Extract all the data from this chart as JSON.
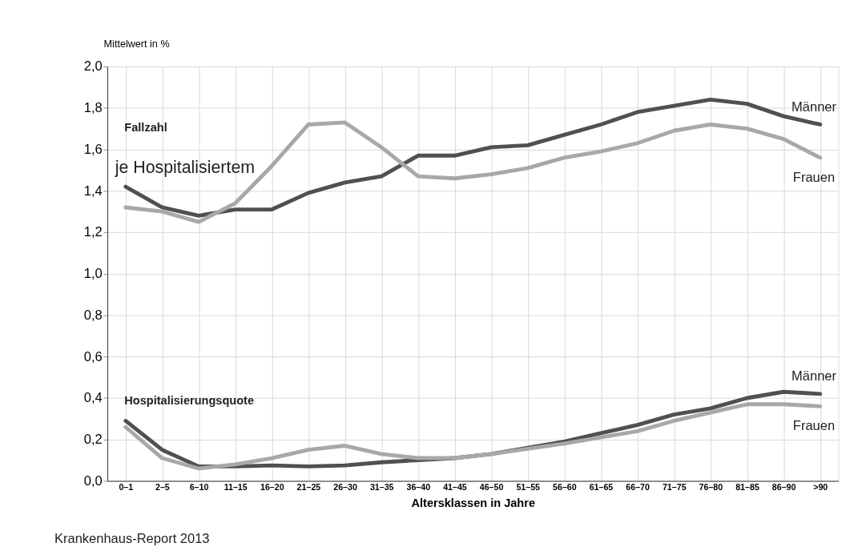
{
  "chart_data": {
    "type": "line",
    "ylabel": "Mittelwert in %",
    "xlabel": "Altersklassen in Jahre",
    "categories": [
      "0–1",
      "2–5",
      "6–10",
      "11–15",
      "16–20",
      "21–25",
      "26–30",
      "31–35",
      "36–40",
      "41–45",
      "46–50",
      "51–55",
      "56–60",
      "61–65",
      "66–70",
      "71–75",
      "76–80",
      "81–85",
      "86–90",
      ">90"
    ],
    "series": [
      {
        "name": "Männer",
        "color": "#505050",
        "values": [
          1.42,
          1.32,
          1.28,
          1.31,
          1.31,
          1.39,
          1.44,
          1.47,
          1.57,
          1.57,
          1.61,
          1.62,
          1.67,
          1.72,
          1.78,
          1.81,
          1.84,
          1.82,
          1.76,
          1.72
        ]
      },
      {
        "name": "Frauen",
        "color": "#a8a8aa",
        "values": [
          1.32,
          1.3,
          1.25,
          1.34,
          1.52,
          1.72,
          1.73,
          1.61,
          1.47,
          1.46,
          1.48,
          1.51,
          1.56,
          1.59,
          1.63,
          1.69,
          1.72,
          1.7,
          1.65,
          1.56
        ]
      },
      {
        "name": "Männer",
        "color": "#505050",
        "values": [
          0.29,
          0.15,
          0.07,
          0.07,
          0.075,
          0.07,
          0.075,
          0.09,
          0.1,
          0.11,
          0.13,
          0.16,
          0.19,
          0.23,
          0.27,
          0.32,
          0.35,
          0.4,
          0.43,
          0.42
        ]
      },
      {
        "name": "Frauen",
        "color": "#a8a8aa",
        "values": [
          0.26,
          0.11,
          0.06,
          0.08,
          0.11,
          0.15,
          0.17,
          0.13,
          0.11,
          0.11,
          0.13,
          0.155,
          0.18,
          0.21,
          0.24,
          0.29,
          0.33,
          0.37,
          0.37,
          0.36
        ]
      }
    ],
    "ylim": [
      0,
      2
    ],
    "yticks": [
      {
        "value": 0,
        "label": "0,0"
      },
      {
        "value": 0.2,
        "label": "0,2"
      },
      {
        "value": 0.4,
        "label": "0,4"
      },
      {
        "value": 0.6,
        "label": "0,6"
      },
      {
        "value": 0.8,
        "label": "0,8"
      },
      {
        "value": 1.0,
        "label": "1,0"
      },
      {
        "value": 1.2,
        "label": "1,2"
      },
      {
        "value": 1.4,
        "label": "1,4"
      },
      {
        "value": 1.6,
        "label": "1,6"
      },
      {
        "value": 1.8,
        "label": "1,8"
      },
      {
        "value": 2.0,
        "label": "2,0"
      }
    ],
    "grid": true,
    "marker": "none",
    "line_style": "solid",
    "annotations": [
      "Fallzahl",
      "je Hospitalisiertem",
      "Hospitalisierungsquote",
      "Krankenhaus-Report 2013"
    ]
  }
}
